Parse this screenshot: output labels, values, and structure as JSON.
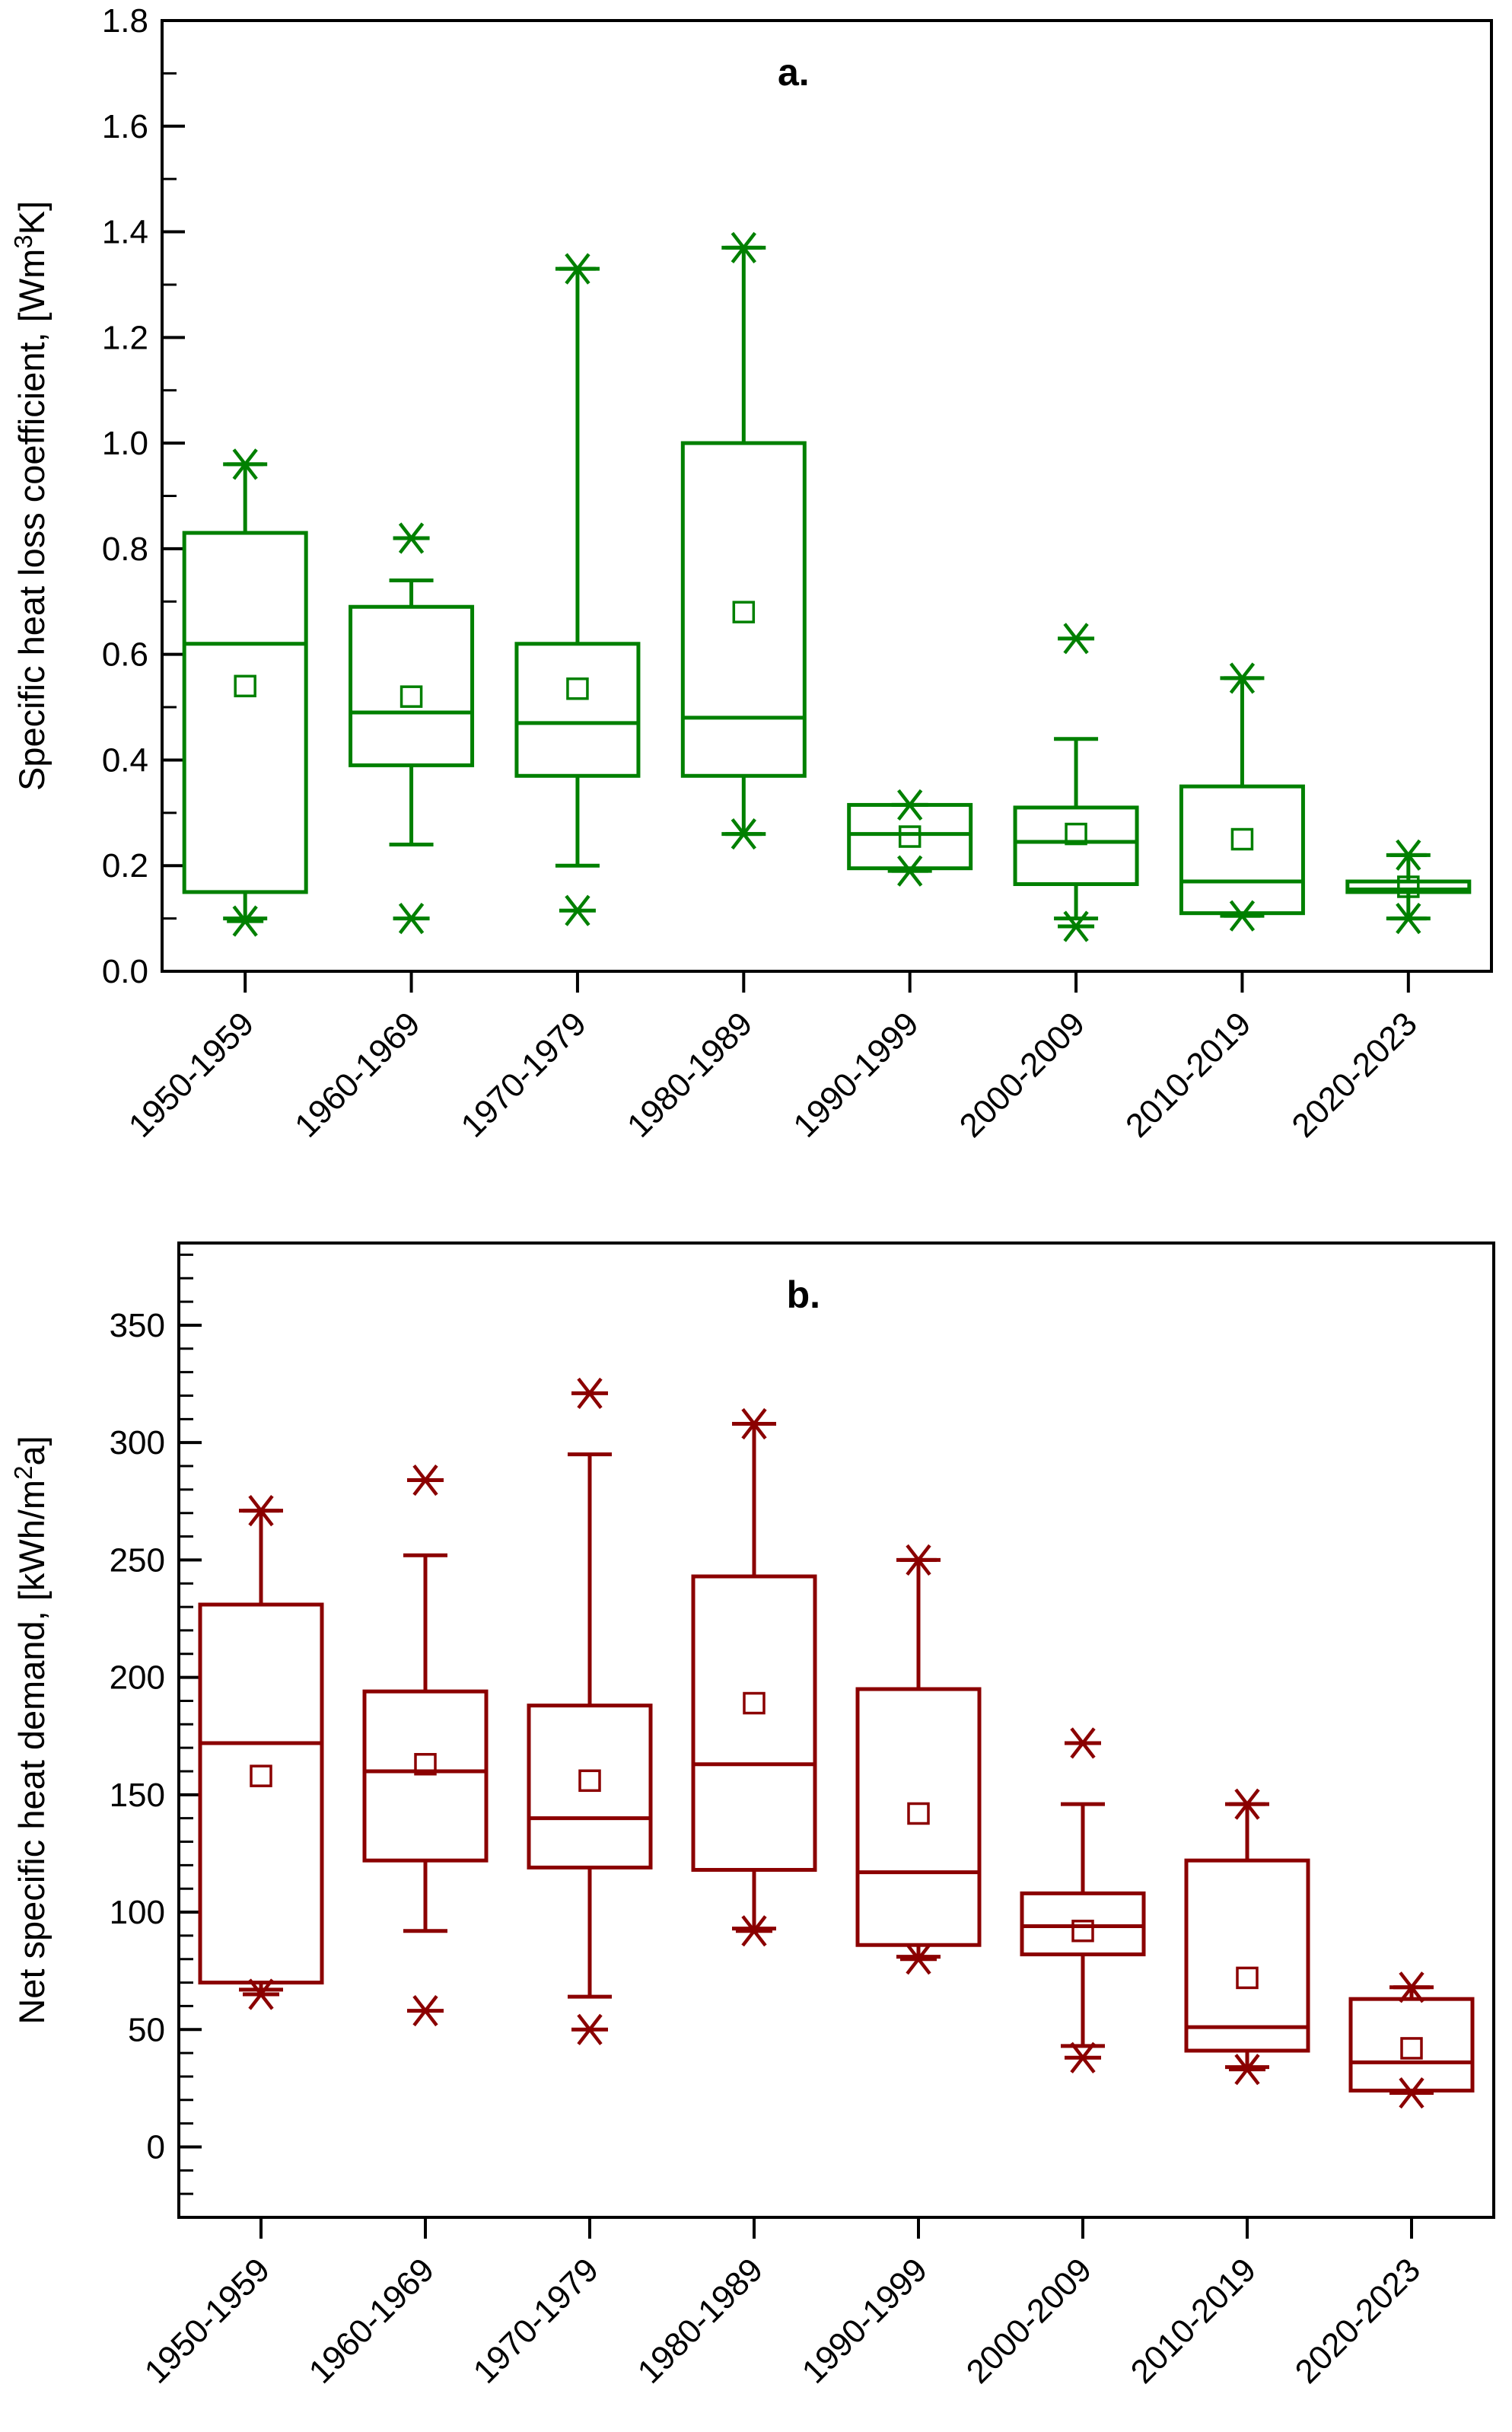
{
  "figure": {
    "background": "#ffffff",
    "frame_color": "#000000"
  },
  "chart_data": [
    {
      "type": "box",
      "panel_label": "a.",
      "series_color": "#008000",
      "ylabel": {
        "prefix": "Specific heat loss coefficient, [Wm",
        "sup": "3",
        "suffix": "K]"
      },
      "ylim": [
        0,
        1.8
      ],
      "yticks": [
        {
          "value": 0.0,
          "label": "0.0"
        },
        {
          "value": 0.2,
          "label": "0.2"
        },
        {
          "value": 0.4,
          "label": "0.4"
        },
        {
          "value": 0.6,
          "label": "0.6"
        },
        {
          "value": 0.8,
          "label": "0.8"
        },
        {
          "value": 1.0,
          "label": "1.0"
        },
        {
          "value": 1.2,
          "label": "1.2"
        },
        {
          "value": 1.4,
          "label": "1.4"
        },
        {
          "value": 1.6,
          "label": "1.6"
        },
        {
          "value": 1.8,
          "label": "1.8"
        }
      ],
      "yminor_step": 0.1,
      "grid": false,
      "legend": null,
      "categories": [
        "1950-1959",
        "1960-1969",
        "1970-1979",
        "1980-1989",
        "1990-1999",
        "2000-2009",
        "2010-2019",
        "2020-2023"
      ],
      "boxes": [
        {
          "q1": 0.15,
          "median": 0.62,
          "q3": 0.83,
          "mean": 0.54,
          "whisker_low": 0.1,
          "whisker_high": 0.96,
          "stars": [
            0.96,
            0.095
          ]
        },
        {
          "q1": 0.39,
          "median": 0.49,
          "q3": 0.69,
          "mean": 0.52,
          "whisker_low": 0.24,
          "whisker_high": 0.74,
          "stars": [
            0.82,
            0.1
          ]
        },
        {
          "q1": 0.37,
          "median": 0.47,
          "q3": 0.62,
          "mean": 0.535,
          "whisker_low": 0.2,
          "whisker_high": 1.33,
          "stars": [
            1.33,
            0.115
          ]
        },
        {
          "q1": 0.37,
          "median": 0.48,
          "q3": 1.0,
          "mean": 0.68,
          "whisker_low": 0.26,
          "whisker_high": 1.37,
          "stars": [
            1.37,
            0.26
          ]
        },
        {
          "q1": 0.195,
          "median": 0.26,
          "q3": 0.315,
          "mean": 0.255,
          "whisker_low": 0.19,
          "whisker_high": 0.315,
          "stars": [
            0.315,
            0.19
          ]
        },
        {
          "q1": 0.165,
          "median": 0.245,
          "q3": 0.31,
          "mean": 0.26,
          "whisker_low": 0.1,
          "whisker_high": 0.44,
          "stars": [
            0.63,
            0.085
          ]
        },
        {
          "q1": 0.11,
          "median": 0.17,
          "q3": 0.35,
          "mean": 0.25,
          "whisker_low": 0.105,
          "whisker_high": 0.555,
          "stars": [
            0.555,
            0.105
          ]
        },
        {
          "q1": 0.15,
          "median": 0.155,
          "q3": 0.17,
          "mean": 0.16,
          "whisker_low": 0.1,
          "whisker_high": 0.22,
          "stars": [
            0.22,
            0.1
          ]
        }
      ]
    },
    {
      "type": "box",
      "panel_label": "b.",
      "series_color": "#8B0000",
      "ylabel": {
        "prefix": "Net specific heat demand, [kWh/m",
        "sup": "2",
        "suffix": "a]"
      },
      "ylim": [
        -30,
        385
      ],
      "yticks": [
        {
          "value": 0,
          "label": "0"
        },
        {
          "value": 50,
          "label": "50"
        },
        {
          "value": 100,
          "label": "100"
        },
        {
          "value": 150,
          "label": "150"
        },
        {
          "value": 200,
          "label": "200"
        },
        {
          "value": 250,
          "label": "250"
        },
        {
          "value": 300,
          "label": "300"
        },
        {
          "value": 350,
          "label": "350"
        }
      ],
      "yminor_step": 10,
      "grid": false,
      "legend": null,
      "categories": [
        "1950-1959",
        "1960-1969",
        "1970-1979",
        "1980-1989",
        "1990-1999",
        "2000-2009",
        "2010-2019",
        "2020-2023"
      ],
      "boxes": [
        {
          "q1": 70,
          "median": 172,
          "q3": 231,
          "mean": 158,
          "whisker_low": 67,
          "whisker_high": 271,
          "stars": [
            271,
            65
          ]
        },
        {
          "q1": 122,
          "median": 160,
          "q3": 194,
          "mean": 163,
          "whisker_low": 92,
          "whisker_high": 252,
          "stars": [
            284,
            58
          ]
        },
        {
          "q1": 119,
          "median": 140,
          "q3": 188,
          "mean": 156,
          "whisker_low": 64,
          "whisker_high": 295,
          "stars": [
            321,
            50
          ]
        },
        {
          "q1": 118,
          "median": 163,
          "q3": 243,
          "mean": 189,
          "whisker_low": 93,
          "whisker_high": 308,
          "stars": [
            308,
            92
          ]
        },
        {
          "q1": 86,
          "median": 117,
          "q3": 195,
          "mean": 142,
          "whisker_low": 81,
          "whisker_high": 250,
          "stars": [
            250,
            80
          ]
        },
        {
          "q1": 82,
          "median": 94,
          "q3": 108,
          "mean": 92,
          "whisker_low": 43,
          "whisker_high": 146,
          "stars": [
            172,
            38
          ]
        },
        {
          "q1": 41,
          "median": 51,
          "q3": 122,
          "mean": 72,
          "whisker_low": 34,
          "whisker_high": 146,
          "stars": [
            146,
            33
          ]
        },
        {
          "q1": 24,
          "median": 36,
          "q3": 63,
          "mean": 42,
          "whisker_low": 23,
          "whisker_high": 68,
          "stars": [
            68,
            23
          ]
        }
      ]
    }
  ]
}
